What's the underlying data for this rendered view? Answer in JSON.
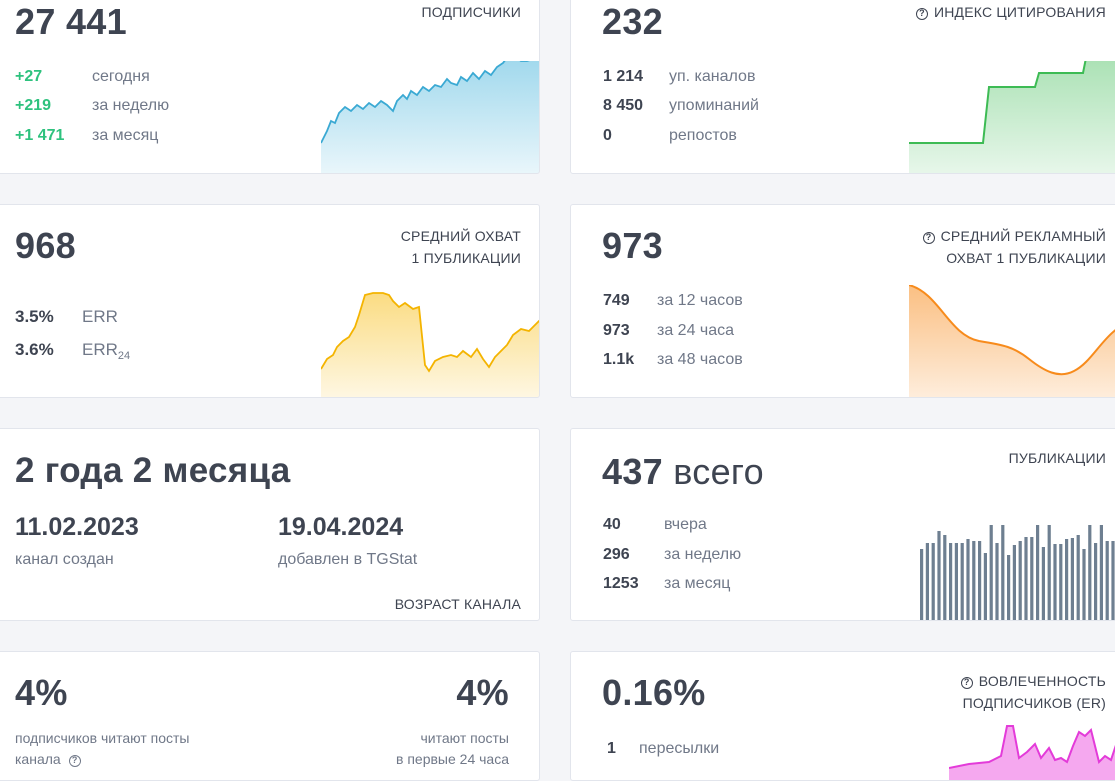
{
  "subscribers": {
    "value": "27 441",
    "label": "ПОДПИСЧИКИ",
    "rows": [
      {
        "value": "+27",
        "desc": "сегодня"
      },
      {
        "value": "+219",
        "desc": "за неделю"
      },
      {
        "value": "+1 471",
        "desc": "за месяц"
      }
    ]
  },
  "citation": {
    "value": "232",
    "label": "ИНДЕКС ЦИТИРОВАНИЯ",
    "rows": [
      {
        "value": "1 214",
        "desc": "уп. каналов"
      },
      {
        "value": "8 450",
        "desc": "упоминаний"
      },
      {
        "value": "0",
        "desc": "репостов"
      }
    ]
  },
  "reach": {
    "value": "968",
    "label_line1": "СРЕДНИЙ ОХВАТ",
    "label_line2": "1 ПУБЛИКАЦИИ",
    "rows": [
      {
        "value": "3.5%",
        "desc": "ERR"
      },
      {
        "value": "3.6%",
        "desc": "ERR",
        "sub": "24"
      }
    ]
  },
  "ad_reach": {
    "value": "973",
    "label_line1": "СРЕДНИЙ РЕКЛАМНЫЙ",
    "label_line2": "ОХВАТ 1 ПУБЛИКАЦИИ",
    "rows": [
      {
        "value": "749",
        "desc": "за 12 часов"
      },
      {
        "value": "973",
        "desc": "за 24 часа"
      },
      {
        "value": "1.1k",
        "desc": "за 48 часов"
      }
    ]
  },
  "age": {
    "value": "2 года 2 месяца",
    "created_date": "11.02.2023",
    "created_label": "канал создан",
    "added_date": "19.04.2024",
    "added_label": "добавлен в TGStat",
    "label": "ВОЗРАСТ КАНАЛА"
  },
  "posts": {
    "value": "437",
    "value_suffix": "всего",
    "label": "ПУБЛИКАЦИИ",
    "rows": [
      {
        "value": "40",
        "desc": "вчера"
      },
      {
        "value": "296",
        "desc": "за неделю"
      },
      {
        "value": "1253",
        "desc": "за месяц"
      }
    ],
    "bars": [
      0.72,
      0.78,
      0.78,
      0.9,
      0.86,
      0.78,
      0.78,
      0.78,
      0.82,
      0.8,
      0.8,
      0.68,
      0.96,
      0.78,
      0.96,
      0.66,
      0.76,
      0.8,
      0.84,
      0.84,
      0.96,
      0.74,
      0.96,
      0.77,
      0.77,
      0.82,
      0.83,
      0.86,
      0.72,
      0.96,
      0.78,
      0.96,
      0.8,
      0.8,
      0.82
    ]
  },
  "readers": {
    "left_value": "4%",
    "left_desc_line1": "подписчиков читают посты",
    "left_desc_line2": "канала",
    "right_value": "4%",
    "right_desc_line1": "читают посты",
    "right_desc_line2": "в первые 24 часа"
  },
  "engagement": {
    "value": "0.16%",
    "label_line1": "ВОВЛЕЧЕННОСТЬ",
    "label_line2": "ПОДПИСЧИКОВ (ER)",
    "rows": [
      {
        "value": "1",
        "desc": "пересылки"
      }
    ]
  },
  "colors": {
    "subscribers": "#4fb7dd",
    "citation": "#3dbb54",
    "reach": "#f7bf1c",
    "ad_reach": "#f78b1c",
    "posts": "#6e7f91",
    "engagement": "#e33bd9",
    "green_delta": "#2ec27e"
  }
}
